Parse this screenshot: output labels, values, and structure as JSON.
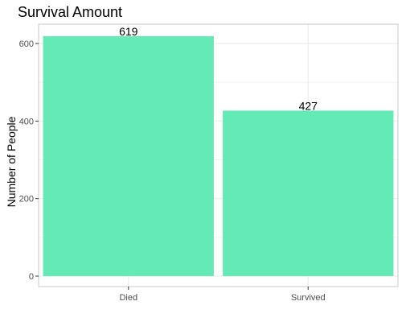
{
  "chart_data": {
    "type": "bar",
    "title": "Survival Amount",
    "xlabel": "",
    "ylabel": "Number of People",
    "categories": [
      "Died",
      "Survived"
    ],
    "values": [
      619,
      427
    ],
    "data_labels": [
      "619",
      "427"
    ],
    "ylim": [
      0,
      650
    ],
    "yticks": [
      0,
      200,
      400,
      600
    ],
    "ytick_labels": [
      "0",
      "200",
      "400",
      "600"
    ],
    "grid": true,
    "bar_color": "#64eab7",
    "grid_color": "#ebebeb",
    "panel_border_color": "#c8c8c8"
  }
}
